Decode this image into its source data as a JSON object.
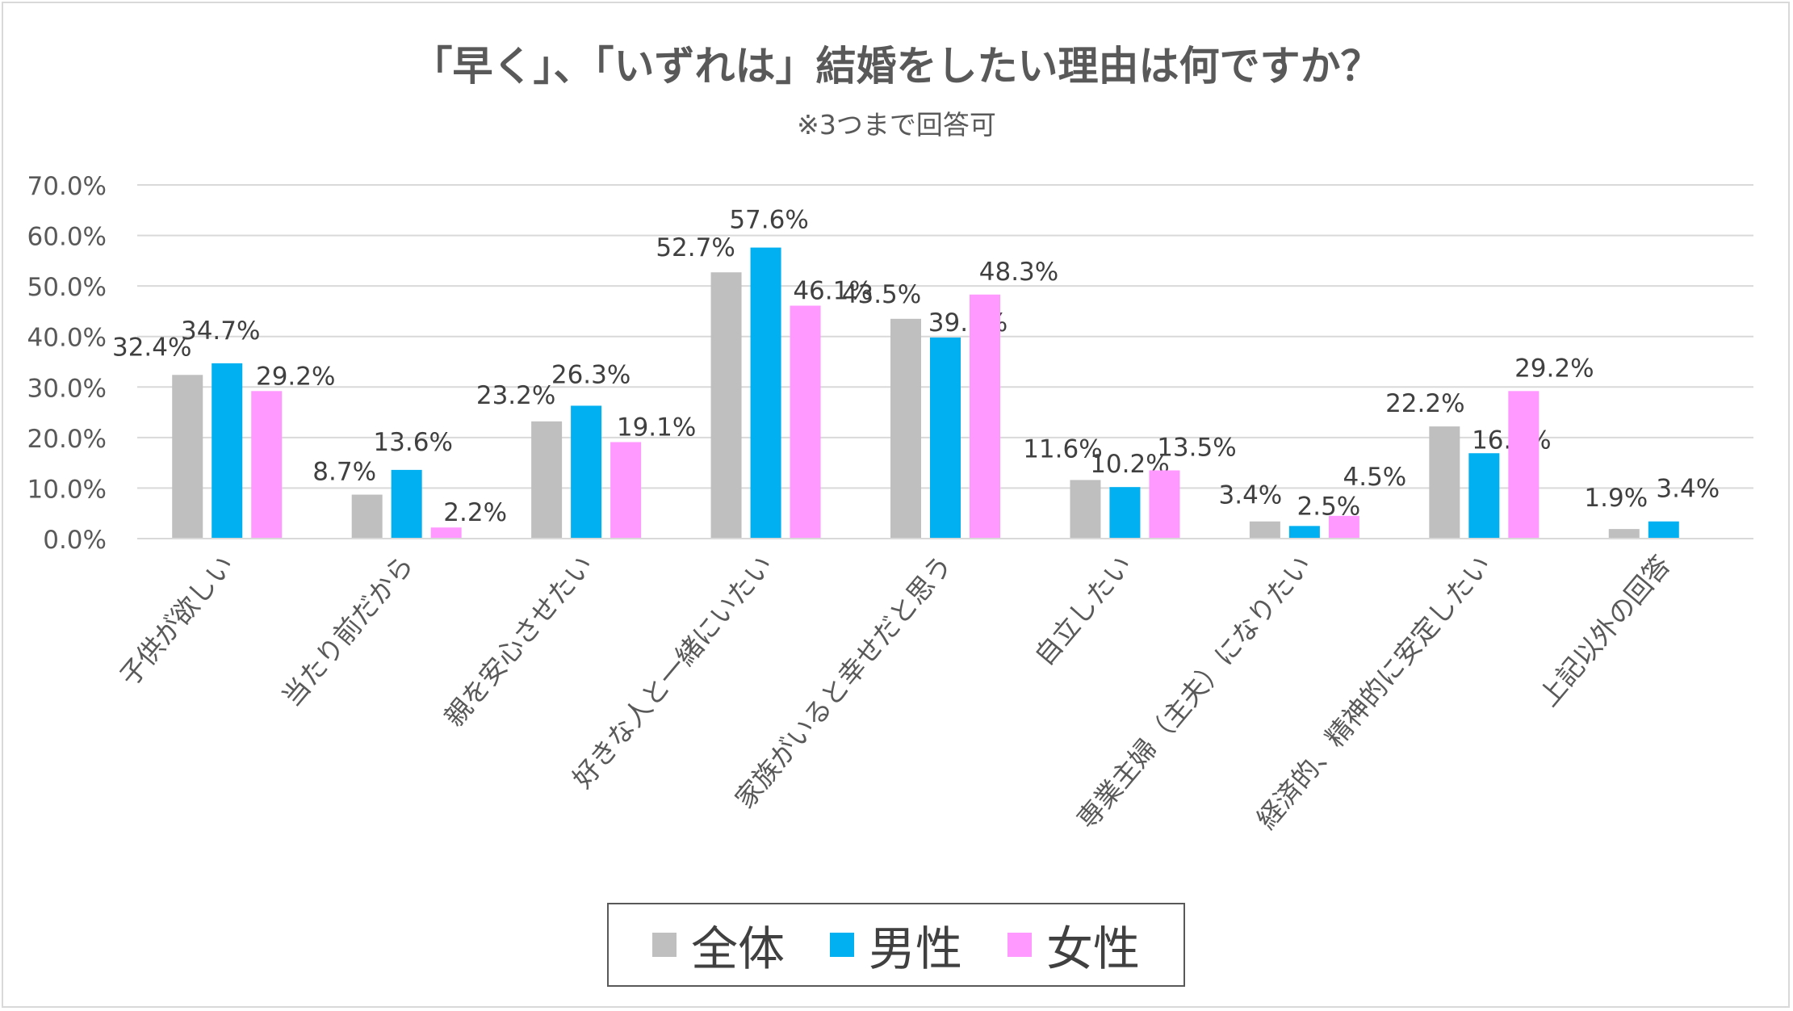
{
  "chart_data": {
    "type": "bar",
    "title": "「早く」、「いずれは」結婚をしたい理由は何ですか？",
    "subtitle": "※3つまで回答可",
    "categories": [
      "子供が欲しい",
      "当たり前だから",
      "親を安心させたい",
      "好きな人と一緒にいたい",
      "家族がいると幸せだと思う",
      "自立したい",
      "専業主婦（主夫）になりたい",
      "経済的、精神的に安定したい",
      "上記以外の回答"
    ],
    "series": [
      {
        "name": "全体",
        "color": "#bfbfbf",
        "values": [
          32.4,
          8.7,
          23.2,
          52.7,
          43.5,
          11.6,
          3.4,
          22.2,
          1.9
        ],
        "labels": [
          "32.4%",
          "8.7%",
          "23.2%",
          "52.7%",
          "43.5%",
          "11.6%",
          "3.4%",
          "22.2%",
          "1.9%"
        ]
      },
      {
        "name": "男性",
        "color": "#00b0f0",
        "values": [
          34.7,
          13.6,
          26.3,
          57.6,
          39.8,
          10.2,
          2.5,
          16.9,
          3.4
        ],
        "labels": [
          "34.7%",
          "13.6%",
          "26.3%",
          "57.6%",
          "39.8%",
          "10.2%",
          "2.5%",
          "16.9%",
          "3.4%"
        ]
      },
      {
        "name": "女性",
        "color": "#ff99ff",
        "values": [
          29.2,
          2.2,
          19.1,
          46.1,
          48.3,
          13.5,
          4.5,
          29.2,
          null
        ],
        "labels": [
          "29.2%",
          "2.2%",
          "19.1%",
          "46.1%",
          "48.3%",
          "13.5%",
          "4.5%",
          "29.2%",
          ""
        ]
      }
    ],
    "yticks": [
      "0.0%",
      "10.0%",
      "20.0%",
      "30.0%",
      "40.0%",
      "50.0%",
      "60.0%",
      "70.0%"
    ],
    "ylim": [
      0,
      70
    ],
    "grid": true,
    "legend_position": "bottom"
  }
}
